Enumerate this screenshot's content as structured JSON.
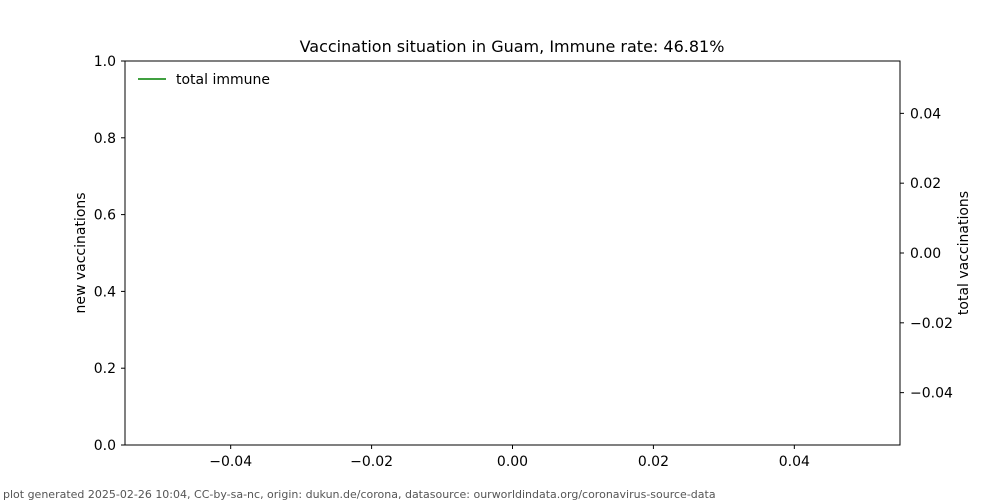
{
  "chart_data": {
    "type": "line",
    "title": "Vaccination situation in Guam, Immune rate: 46.81%",
    "xlabel": "",
    "ylabel": "new vaccinations",
    "y2label": "total vaccinations",
    "xlim": [
      -0.055,
      0.055
    ],
    "ylim": [
      0,
      1
    ],
    "y2lim": [
      -0.055,
      0.055
    ],
    "x_ticks": [
      -0.04,
      -0.02,
      0.0,
      0.02,
      0.04
    ],
    "x_tick_labels": [
      "−0.04",
      "−0.02",
      "0.00",
      "0.02",
      "0.04"
    ],
    "y_ticks": [
      0.0,
      0.2,
      0.4,
      0.6,
      0.8,
      1.0
    ],
    "y_tick_labels": [
      "0.0",
      "0.2",
      "0.4",
      "0.6",
      "0.8",
      "1.0"
    ],
    "y2_ticks": [
      0.04,
      0.02,
      0.0,
      -0.02,
      -0.04
    ],
    "y2_tick_labels": [
      "0.04",
      "0.02",
      "0.00",
      "−0.02",
      "−0.04"
    ],
    "grid": false,
    "legend_position": "top-left",
    "series": [
      {
        "name": "total immune",
        "color": "#008000",
        "axis": "right",
        "x": [],
        "y": []
      }
    ]
  },
  "footer": {
    "text": "plot generated 2025-02-26 10:04, CC-by-sa-nc, origin: dukun.de/corona, datasource: ourworldindata.org/coronavirus-source-data"
  }
}
